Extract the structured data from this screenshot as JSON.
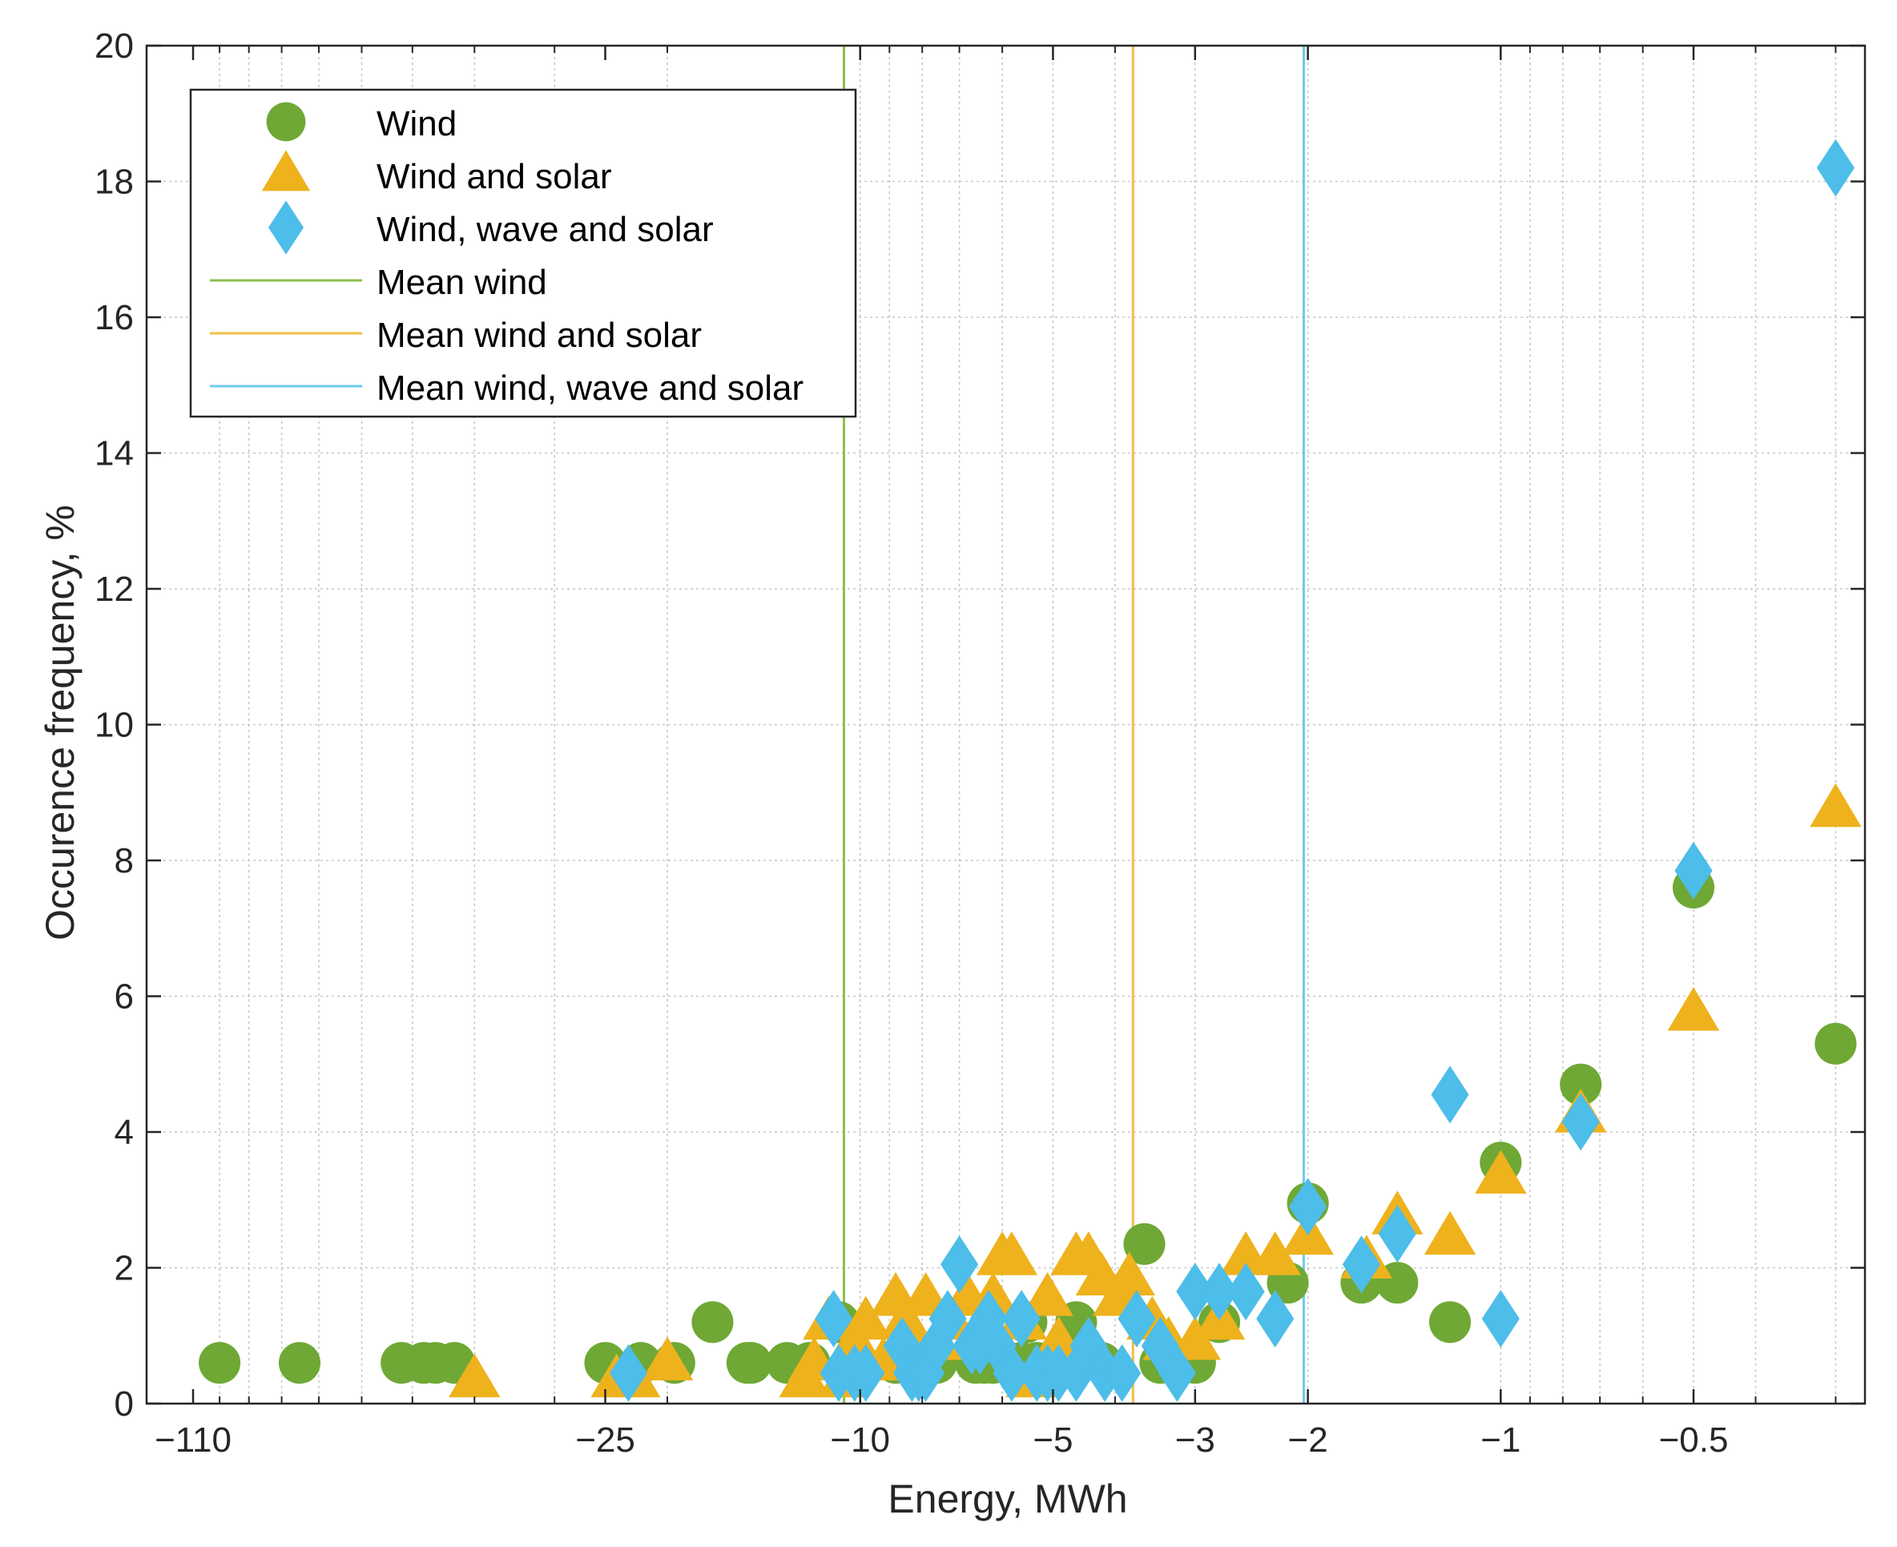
{
  "chart_data": {
    "type": "scatter",
    "title": "",
    "xlabel": "Energy, MWh",
    "ylabel": "Occurence frequency, %",
    "x_scale": "log of magnitude (negative energies)",
    "xlim": [
      -130,
      -0.27
    ],
    "ylim": [
      0,
      20
    ],
    "y_ticks": [
      0,
      2,
      4,
      6,
      8,
      10,
      12,
      14,
      16,
      18,
      20
    ],
    "x_ticks": [
      -110,
      -25,
      -10,
      -5,
      -3,
      -2,
      -1,
      -0.5
    ],
    "x_tick_labels": [
      "−110",
      "−25",
      "−10",
      "−5",
      "−3",
      "−2",
      "−1",
      "−0.5"
    ],
    "grid": true,
    "legend_position": "top-left",
    "series": [
      {
        "name": "Wind",
        "marker": "circle",
        "color": "#6fa835",
        "points": [
          [
            -100,
            0.6
          ],
          [
            -75,
            0.6
          ],
          [
            -52,
            0.6
          ],
          [
            -48,
            0.6
          ],
          [
            -46,
            0.6
          ],
          [
            -43,
            0.6
          ],
          [
            -25,
            0.6
          ],
          [
            -22,
            0.6
          ],
          [
            -19.5,
            0.6
          ],
          [
            -17,
            1.2
          ],
          [
            -15,
            0.6
          ],
          [
            -14.8,
            0.6
          ],
          [
            -13,
            0.6
          ],
          [
            -12,
            0.6
          ],
          [
            -10.8,
            1.2
          ],
          [
            -10.2,
            0.6
          ],
          [
            -8.8,
            0.6
          ],
          [
            -7.6,
            0.6
          ],
          [
            -6.6,
            0.6
          ],
          [
            -6.4,
            0.6
          ],
          [
            -6.2,
            0.6
          ],
          [
            -5.6,
            0.6
          ],
          [
            -5.5,
            1.2
          ],
          [
            -5.3,
            0.6
          ],
          [
            -5.1,
            0.6
          ],
          [
            -4.9,
            0.6
          ],
          [
            -4.6,
            1.2
          ],
          [
            -4.2,
            0.6
          ],
          [
            -3.6,
            2.35
          ],
          [
            -3.4,
            0.6
          ],
          [
            -3.2,
            0.6
          ],
          [
            -3.0,
            0.6
          ],
          [
            -2.75,
            1.2
          ],
          [
            -2.15,
            1.78
          ],
          [
            -2.0,
            2.95
          ],
          [
            -1.65,
            1.78
          ],
          [
            -1.45,
            1.78
          ],
          [
            -1.2,
            1.2
          ],
          [
            -1.0,
            3.55
          ],
          [
            -0.75,
            4.7
          ],
          [
            -0.5,
            7.6
          ],
          [
            -0.3,
            5.3
          ]
        ]
      },
      {
        "name": "Wind and solar",
        "marker": "triangle",
        "color": "#eeb21d",
        "points": [
          [
            -40,
            0.35
          ],
          [
            -24,
            0.35
          ],
          [
            -22.5,
            0.35
          ],
          [
            -20,
            0.6
          ],
          [
            -12.2,
            0.35
          ],
          [
            -11.8,
            0.6
          ],
          [
            -11.2,
            1.2
          ],
          [
            -10.6,
            0.35
          ],
          [
            -10.2,
            0.9
          ],
          [
            -9.8,
            1.2
          ],
          [
            -9.2,
            0.6
          ],
          [
            -8.8,
            1.55
          ],
          [
            -8.5,
            1.2
          ],
          [
            -8.2,
            0.9
          ],
          [
            -7.9,
            1.55
          ],
          [
            -7.6,
            0.9
          ],
          [
            -7.2,
            1.2
          ],
          [
            -6.8,
            1.55
          ],
          [
            -6.6,
            0.9
          ],
          [
            -6.2,
            1.55
          ],
          [
            -6.0,
            2.15
          ],
          [
            -5.8,
            2.15
          ],
          [
            -5.6,
            1.2
          ],
          [
            -5.4,
            0.35
          ],
          [
            -5.1,
            1.55
          ],
          [
            -4.9,
            0.9
          ],
          [
            -4.6,
            2.15
          ],
          [
            -4.4,
            2.15
          ],
          [
            -4.2,
            1.85
          ],
          [
            -3.95,
            1.55
          ],
          [
            -3.8,
            1.85
          ],
          [
            -3.5,
            1.2
          ],
          [
            -3.3,
            0.9
          ],
          [
            -3.0,
            0.9
          ],
          [
            -2.75,
            1.2
          ],
          [
            -2.5,
            2.15
          ],
          [
            -2.25,
            2.15
          ],
          [
            -2.0,
            2.45
          ],
          [
            -1.62,
            2.1
          ],
          [
            -1.45,
            2.75
          ],
          [
            -1.2,
            2.45
          ],
          [
            -1.0,
            3.35
          ],
          [
            -0.75,
            4.25
          ],
          [
            -0.5,
            5.75
          ],
          [
            -0.3,
            8.75
          ]
        ]
      },
      {
        "name": "Wind, wave and solar",
        "marker": "diamond",
        "color": "#4dbde9",
        "points": [
          [
            -23,
            0.45
          ],
          [
            -11,
            1.25
          ],
          [
            -10.8,
            0.45
          ],
          [
            -10.2,
            0.45
          ],
          [
            -9.8,
            0.45
          ],
          [
            -8.6,
            0.85
          ],
          [
            -8.3,
            0.45
          ],
          [
            -8.1,
            0.45
          ],
          [
            -7.9,
            0.45
          ],
          [
            -7.6,
            0.85
          ],
          [
            -7.3,
            1.25
          ],
          [
            -7.0,
            2.05
          ],
          [
            -6.7,
            0.85
          ],
          [
            -6.5,
            0.85
          ],
          [
            -6.3,
            1.25
          ],
          [
            -6.1,
            0.85
          ],
          [
            -5.8,
            0.45
          ],
          [
            -5.6,
            1.25
          ],
          [
            -5.3,
            0.45
          ],
          [
            -5.1,
            0.45
          ],
          [
            -4.9,
            0.45
          ],
          [
            -4.6,
            0.45
          ],
          [
            -4.4,
            0.85
          ],
          [
            -4.15,
            0.45
          ],
          [
            -3.9,
            0.45
          ],
          [
            -3.7,
            1.25
          ],
          [
            -3.4,
            0.85
          ],
          [
            -3.2,
            0.45
          ],
          [
            -3.0,
            1.65
          ],
          [
            -2.75,
            1.65
          ],
          [
            -2.5,
            1.65
          ],
          [
            -2.25,
            1.25
          ],
          [
            -2.0,
            2.9
          ],
          [
            -1.65,
            2.05
          ],
          [
            -1.45,
            2.5
          ],
          [
            -1.2,
            4.55
          ],
          [
            -1.0,
            1.25
          ],
          [
            -0.75,
            4.15
          ],
          [
            -0.5,
            7.85
          ],
          [
            -0.3,
            18.2
          ]
        ]
      }
    ],
    "mean_lines": [
      {
        "name": "Mean wind",
        "x": -10.6,
        "color": "#8bbf4f"
      },
      {
        "name": "Mean wind and solar",
        "x": -3.75,
        "color": "#f2bd48"
      },
      {
        "name": "Mean wind, wave and solar",
        "x": -2.03,
        "color": "#6ccbed"
      }
    ],
    "legend": [
      "Wind",
      "Wind and solar",
      "Wind, wave and solar",
      "Mean wind",
      "Mean wind and solar",
      "Mean wind, wave and solar"
    ]
  }
}
